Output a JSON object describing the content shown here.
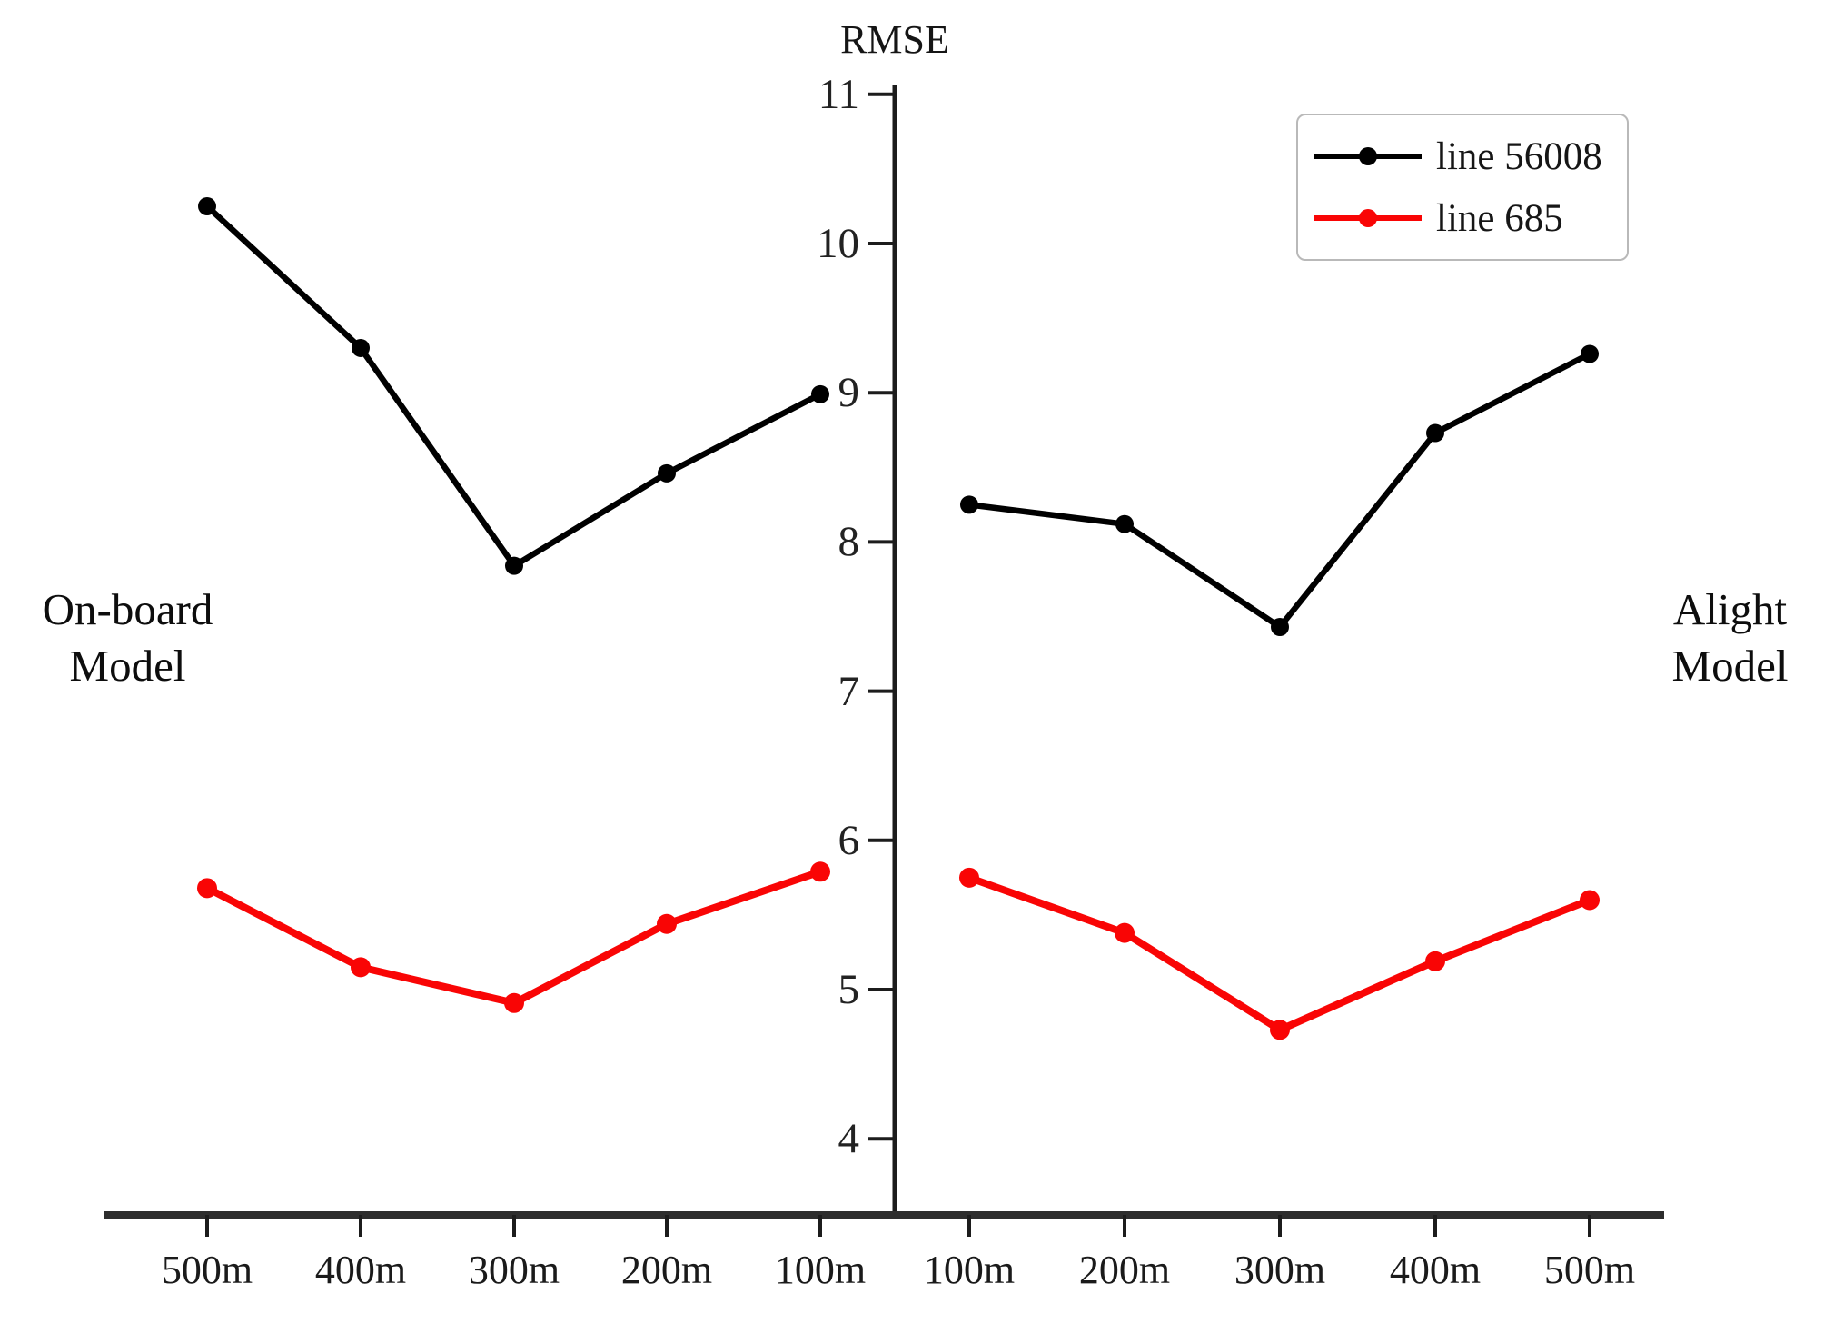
{
  "chart_data": {
    "type": "line",
    "title": "RMSE",
    "y_axis": {
      "label": "RMSE",
      "ticks": [
        11,
        10,
        9,
        8,
        7,
        6,
        5,
        4
      ],
      "range_shown": [
        4,
        11
      ],
      "grid": false
    },
    "panels": [
      {
        "name": "On-board Model",
        "label_lines": [
          "On-board",
          "Model"
        ],
        "categories": [
          "500m",
          "400m",
          "300m",
          "200m",
          "100m"
        ],
        "series": [
          {
            "name": "line 56008",
            "color": "#000000",
            "values": [
              10.25,
              9.3,
              7.84,
              8.46,
              8.99
            ]
          },
          {
            "name": "line 685",
            "color": "#f90505",
            "values": [
              5.68,
              5.15,
              4.91,
              5.44,
              5.79
            ]
          }
        ]
      },
      {
        "name": "Alight Model",
        "label_lines": [
          "Alight",
          "Model"
        ],
        "categories": [
          "100m",
          "200m",
          "300m",
          "400m",
          "500m"
        ],
        "series": [
          {
            "name": "line 56008",
            "color": "#000000",
            "values": [
              8.25,
              8.12,
              7.43,
              8.73,
              9.26
            ]
          },
          {
            "name": "line 685",
            "color": "#f90505",
            "values": [
              5.75,
              5.38,
              4.73,
              5.19,
              5.6
            ]
          }
        ]
      }
    ],
    "legend": {
      "position": "top-right",
      "entries": [
        {
          "label": "line 56008",
          "color": "#000000"
        },
        {
          "label": "line 685",
          "color": "#f90505"
        }
      ]
    }
  }
}
